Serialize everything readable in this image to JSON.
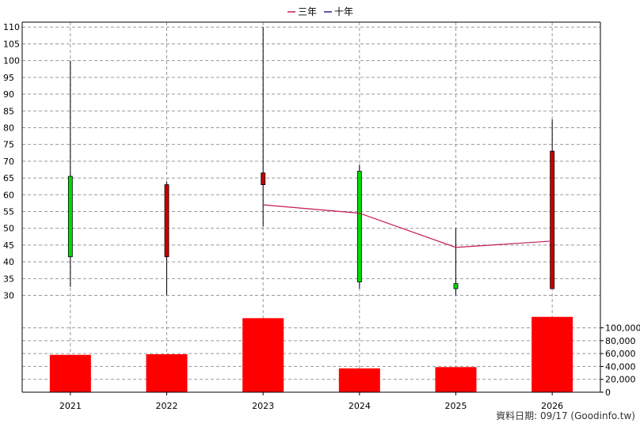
{
  "chart_data": {
    "type": "candlestick_with_volume",
    "categories": [
      "2021",
      "2022",
      "2023",
      "2024",
      "2025",
      "2026"
    ],
    "legend": [
      {
        "label": "三年",
        "color": "#c2185b"
      },
      {
        "label": "十年",
        "color": "#3f1b8a"
      }
    ],
    "price_axis": {
      "ylim": [
        28,
        111
      ],
      "ticks": [
        30,
        35,
        40,
        45,
        50,
        55,
        60,
        65,
        70,
        75,
        80,
        85,
        90,
        95,
        100,
        105,
        110
      ]
    },
    "volume_axis": {
      "ylim": [
        0,
        140000
      ],
      "ticks": [
        0,
        20000,
        40000,
        60000,
        80000,
        100000
      ],
      "tick_labels": [
        "0",
        "20,000",
        "40,000",
        "60,000",
        "80,000",
        "100,000"
      ]
    },
    "candles": [
      {
        "year": "2021",
        "open": 41.5,
        "high": 100,
        "low": 32.5,
        "close": 65.5,
        "direction": "up"
      },
      {
        "year": "2022",
        "open": 63,
        "high": 64,
        "low": 30,
        "close": 41.5,
        "direction": "down"
      },
      {
        "year": "2023",
        "open": 66.5,
        "high": 110,
        "low": 50.5,
        "close": 63,
        "direction": "down"
      },
      {
        "year": "2024",
        "open": 34,
        "high": 69,
        "low": 32,
        "close": 67,
        "direction": "up"
      },
      {
        "year": "2025",
        "open": 32,
        "high": 50,
        "low": 30,
        "close": 33.5,
        "direction": "up"
      },
      {
        "year": "2026",
        "open": 73,
        "high": 82.5,
        "low": 32,
        "close": 32,
        "direction": "down"
      }
    ],
    "three_year_line": {
      "name": "三年",
      "points": [
        {
          "x": "2023",
          "y": 57
        },
        {
          "x": "2024",
          "y": 54.5
        },
        {
          "x": "2025",
          "y": 44.3
        },
        {
          "x": "2026",
          "y": 46.2
        }
      ]
    },
    "volume": [
      58000,
      59000,
      115000,
      37000,
      39000,
      117000
    ],
    "colors": {
      "up": "#00dd00",
      "down": "#c80000",
      "volume": "#ff0000",
      "wick": "#000000",
      "grid": "#999999",
      "three_year": "#c2185b"
    },
    "grid": true
  },
  "footer": {
    "credit": "資料日期: 09/17  (Goodinfo.tw)"
  }
}
